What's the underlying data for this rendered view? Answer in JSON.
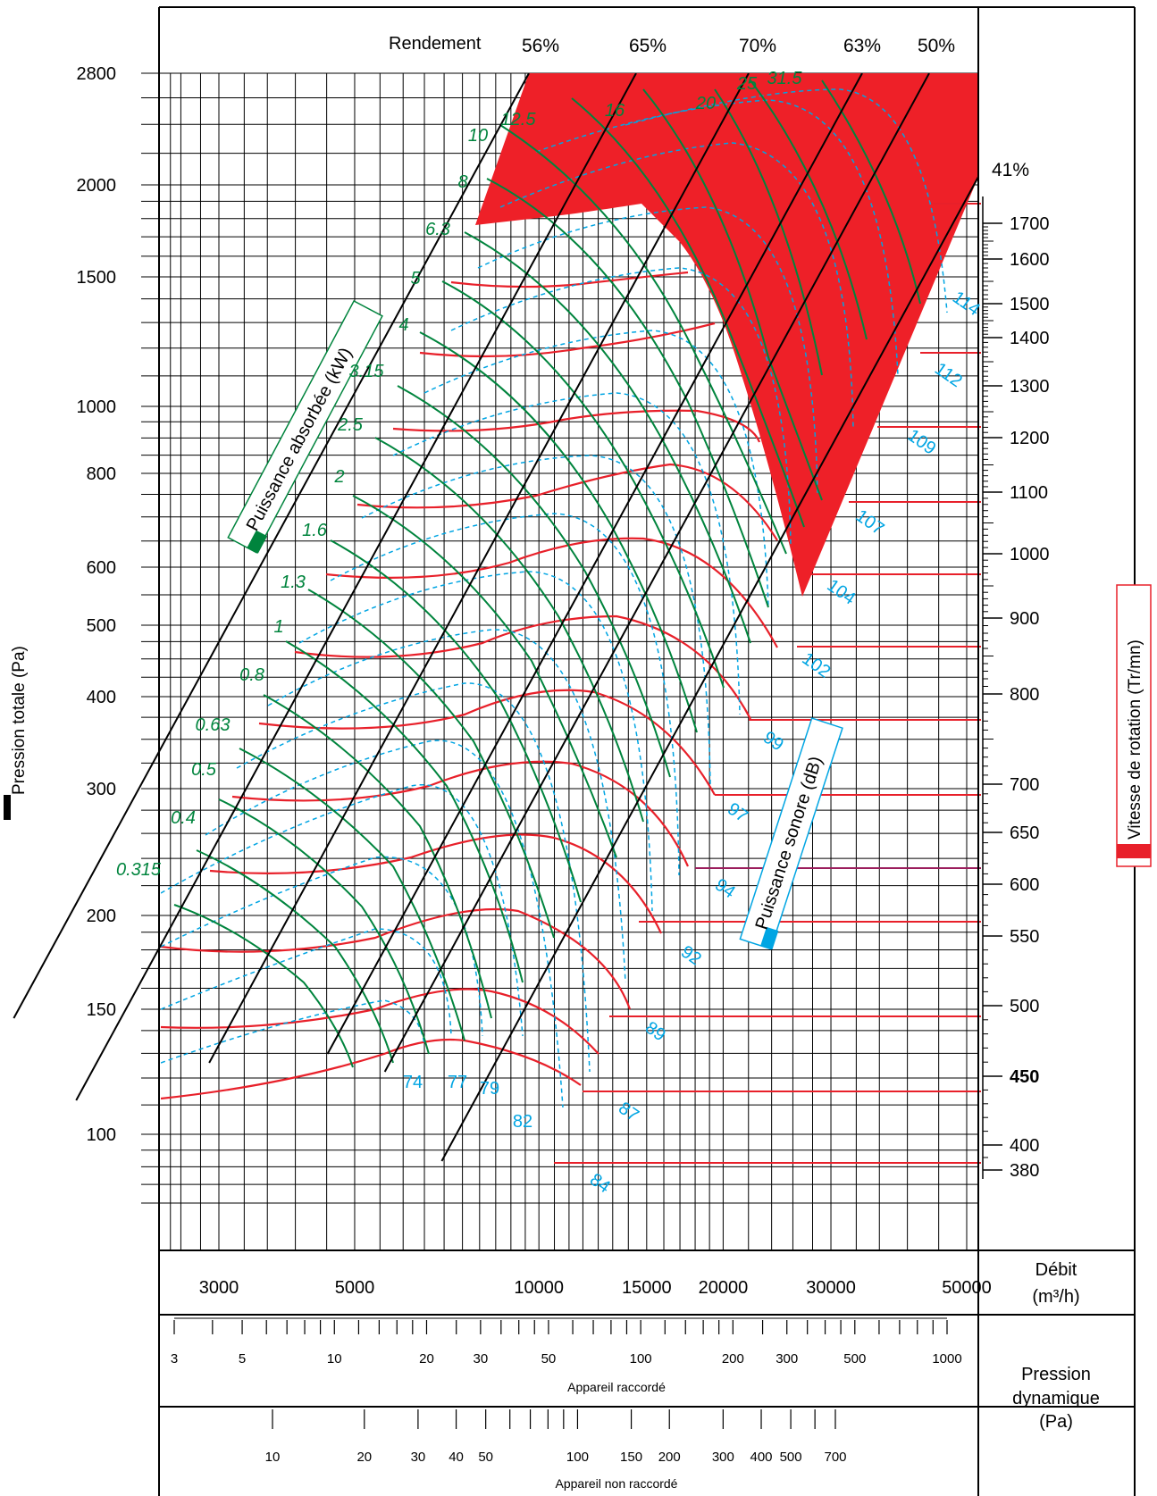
{
  "colors": {
    "frame": "#000000",
    "red_zone": "#ee2028",
    "speed_curve": "#e8202a",
    "power_curve": "#00843d",
    "sound_curve": "#00a5e3",
    "efficiency_line": "#000000",
    "highlight_speed": "#9b1d5c"
  },
  "chart_data": {
    "type": "line",
    "title": "",
    "y_axis": {
      "label": "Pression totale  (Pa)",
      "scale": "log",
      "range": [
        70,
        3000
      ],
      "ticks": [
        2800,
        2000,
        1500,
        1000,
        800,
        600,
        500,
        400,
        300,
        200,
        150,
        100
      ]
    },
    "x_axis": {
      "label": "Débit (m³/h)",
      "scale": "log",
      "range": [
        2300,
        60000
      ],
      "ticks": [
        3000,
        5000,
        10000,
        15000,
        20000,
        30000,
        50000
      ]
    },
    "dynamic_pressure": {
      "title": "Pression dynamique (Pa)",
      "connected": {
        "label": "Appareil raccordé",
        "ticks": [
          3,
          5,
          10,
          20,
          30,
          50,
          100,
          200,
          300,
          500,
          1000
        ]
      },
      "not_connected": {
        "label": "Appareil non raccordé",
        "ticks": [
          10,
          20,
          30,
          40,
          50,
          100,
          150,
          200,
          300,
          400,
          500,
          700
        ]
      }
    },
    "efficiency": {
      "label": "Rendement",
      "values": [
        "56%",
        "65%",
        "70%",
        "63%",
        "50%",
        "41%"
      ]
    },
    "speed": {
      "label": "Vitesse de  rotation  (Tr/mn)",
      "values": [
        1700,
        1600,
        1500,
        1400,
        1300,
        1200,
        1100,
        1000,
        900,
        800,
        700,
        650,
        600,
        550,
        500,
        450,
        400,
        380
      ]
    },
    "power": {
      "label": "Puissance absorbée (kW)",
      "values": [
        "10",
        "8",
        "6.3",
        "5",
        "4",
        "3.15",
        "2.5",
        "2",
        "1.6",
        "1.3",
        "1",
        "0.8",
        "0.63",
        "0.5",
        "0.4",
        "0.315",
        "12.5",
        "16",
        "20",
        "25",
        "31.5"
      ]
    },
    "sound": {
      "label": "Puissance sonore  (dB)",
      "values": [
        "74",
        "77",
        "79",
        "82",
        "84",
        "87",
        "89",
        "92",
        "94",
        "97",
        "99",
        "102",
        "104",
        "107",
        "109",
        "112",
        "114"
      ]
    },
    "highlighted_speed": 600
  }
}
